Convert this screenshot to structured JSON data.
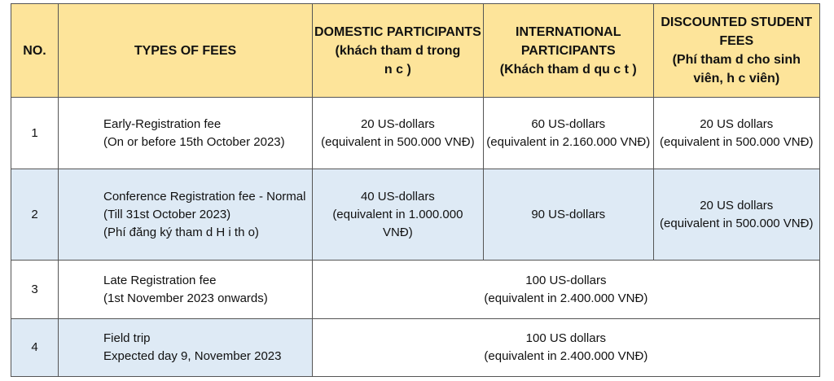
{
  "header": {
    "no": "NO.",
    "types": "TYPES OF FEES",
    "domestic": [
      "DOMESTIC PARTICIPANTS",
      "(khách tham d   trong",
      "n  c )"
    ],
    "international": [
      "INTERNATIONAL",
      "PARTICIPANTS",
      "(Khách tham d   qu  c t  )"
    ],
    "student": [
      "DISCOUNTED  STUDENT",
      "FEES",
      "(Phí tham d   cho sinh",
      "viên, h  c viên)"
    ]
  },
  "rows": [
    {
      "no": "1",
      "type": [
        "Early-Registration fee",
        "(On or before 15th October 2023)"
      ],
      "domestic": [
        "20 US-dollars",
        "(equivalent in 500.000 VNĐ)"
      ],
      "international": [
        "60 US-dollars",
        "(equivalent in 2.160.000 VNĐ)"
      ],
      "student": [
        "20 US dollars",
        "(equivalent in 500.000 VNĐ)"
      ]
    },
    {
      "no": "2",
      "type": [
        "Conference Registration fee - Normal",
        "(Till 31st October 2023)",
        "(Phí đăng ký tham d   H  i th  o)"
      ],
      "domestic": [
        "40 US-dollars",
        "(equivalent in 1.000.000",
        "VNĐ)"
      ],
      "international": [
        "90 US-dollars"
      ],
      "student": [
        "20 US dollars",
        "(equivalent in 500.000 VNĐ)"
      ]
    },
    {
      "no": "3",
      "type": [
        "Late Registration fee",
        "(1st November 2023 onwards)"
      ],
      "merged": [
        "100 US-dollars",
        "(equivalent in 2.400.000 VNĐ)"
      ]
    },
    {
      "no": "4",
      "type": [
        "Field trip",
        "Expected day 9, November 2023"
      ],
      "merged": [
        "100 US dollars",
        "(equivalent in 2.400.000 VNĐ)"
      ]
    }
  ]
}
